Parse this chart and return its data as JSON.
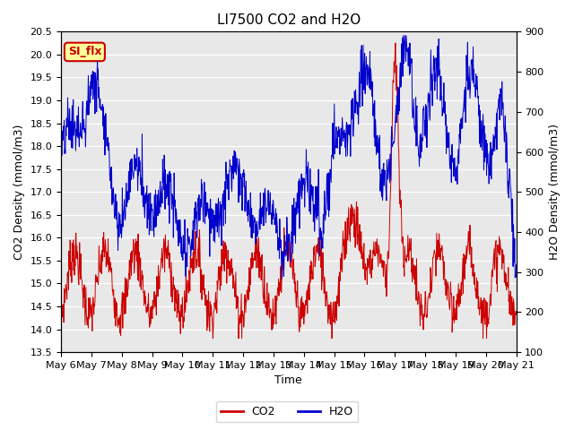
{
  "title": "LI7500 CO2 and H2O",
  "xlabel": "Time",
  "ylabel_left": "CO2 Density (mmol/m3)",
  "ylabel_right": "H2O Density (mmol/m3)",
  "ylim_left": [
    13.5,
    20.5
  ],
  "ylim_right": [
    100,
    900
  ],
  "yticks_left": [
    13.5,
    14.0,
    14.5,
    15.0,
    15.5,
    16.0,
    16.5,
    17.0,
    17.5,
    18.0,
    18.5,
    19.0,
    19.5,
    20.0,
    20.5
  ],
  "yticks_right": [
    100,
    200,
    300,
    400,
    500,
    600,
    700,
    800,
    900
  ],
  "xtick_labels": [
    "May 6",
    "May 7",
    "May 8",
    "May 9",
    "May 10",
    "May 11",
    "May 12",
    "May 13",
    "May 14",
    "May 15",
    "May 16",
    "May 17",
    "May 18",
    "May 19",
    "May 20",
    "May 21"
  ],
  "co2_color": "#CC0000",
  "h2o_color": "#0000CC",
  "background_color": "#E8E8E8",
  "legend_label_co2": "CO2",
  "legend_label_h2o": "H2O",
  "annotation_text": "SI_flx",
  "annotation_bg": "#FFFF99",
  "annotation_border": "#CC0000",
  "title_fontsize": 11,
  "axis_fontsize": 9,
  "tick_fontsize": 8,
  "legend_fontsize": 9
}
